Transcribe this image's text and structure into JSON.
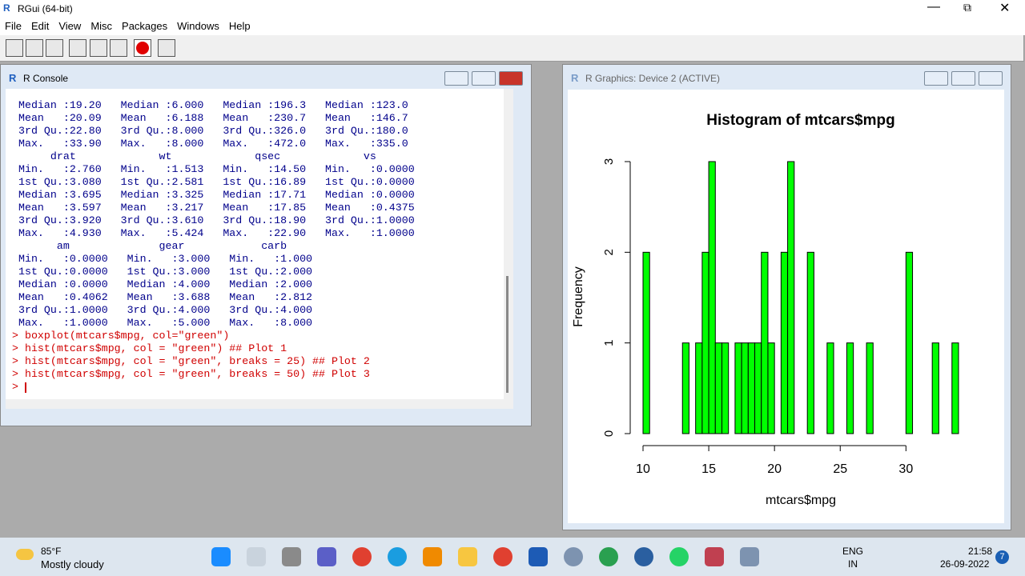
{
  "app": {
    "title": "RGui (64-bit)",
    "menu": [
      "File",
      "Edit",
      "View",
      "Misc",
      "Packages",
      "Windows",
      "Help"
    ]
  },
  "console": {
    "title": "R Console",
    "output": [
      " Median :19.20   Median :6.000   Median :196.3   Median :123.0  ",
      " Mean   :20.09   Mean   :6.188   Mean   :230.7   Mean   :146.7  ",
      " 3rd Qu.:22.80   3rd Qu.:8.000   3rd Qu.:326.0   3rd Qu.:180.0  ",
      " Max.   :33.90   Max.   :8.000   Max.   :472.0   Max.   :335.0  ",
      "      drat             wt             qsec             vs        ",
      " Min.   :2.760   Min.   :1.513   Min.   :14.50   Min.   :0.0000  ",
      " 1st Qu.:3.080   1st Qu.:2.581   1st Qu.:16.89   1st Qu.:0.0000  ",
      " Median :3.695   Median :3.325   Median :17.71   Median :0.0000  ",
      " Mean   :3.597   Mean   :3.217   Mean   :17.85   Mean   :0.4375  ",
      " 3rd Qu.:3.920   3rd Qu.:3.610   3rd Qu.:18.90   3rd Qu.:1.0000  ",
      " Max.   :4.930   Max.   :5.424   Max.   :22.90   Max.   :1.0000  ",
      "       am              gear            carb      ",
      " Min.   :0.0000   Min.   :3.000   Min.   :1.000  ",
      " 1st Qu.:0.0000   1st Qu.:3.000   1st Qu.:2.000  ",
      " Median :0.0000   Median :4.000   Median :2.000  ",
      " Mean   :0.4062   Mean   :3.688   Mean   :2.812  ",
      " 3rd Qu.:1.0000   3rd Qu.:4.000   3rd Qu.:4.000  ",
      " Max.   :1.0000   Max.   :5.000   Max.   :8.000  "
    ],
    "commands": [
      "> boxplot(mtcars$mpg, col=\"green\")",
      "> hist(mtcars$mpg, col = \"green\") ## Plot 1",
      "> hist(mtcars$mpg, col = \"green\", breaks = 25) ## Plot 2",
      "> hist(mtcars$mpg, col = \"green\", breaks = 50) ## Plot 3"
    ],
    "prompt": ">"
  },
  "graphics": {
    "title": "R Graphics: Device 2 (ACTIVE)",
    "histogram": {
      "type": "histogram",
      "title": "Histogram of mtcars$mpg",
      "xlabel": "mtcars$mpg",
      "ylabel": "Frequency",
      "color": "#00ff00",
      "bins": [
        10,
        10.5,
        11,
        11.5,
        12,
        12.5,
        13,
        13.5,
        14,
        14.5,
        15,
        15.5,
        16,
        16.5,
        17,
        17.5,
        18,
        18.5,
        19,
        19.5,
        20,
        20.5,
        21,
        21.5,
        22,
        22.5,
        23,
        23.5,
        24,
        24.5,
        25,
        25.5,
        26,
        26.5,
        27,
        27.5,
        28,
        28.5,
        29,
        29.5,
        30,
        30.5,
        31,
        31.5,
        32,
        32.5,
        33,
        33.5,
        34
      ],
      "counts": [
        2,
        0,
        0,
        0,
        0,
        0,
        1,
        0,
        1,
        2,
        3,
        1,
        1,
        0,
        1,
        1,
        1,
        1,
        2,
        1,
        0,
        2,
        3,
        0,
        0,
        2,
        0,
        0,
        1,
        0,
        0,
        1,
        0,
        0,
        1,
        0,
        0,
        0,
        0,
        0,
        2,
        0,
        0,
        0,
        1,
        0,
        0,
        1
      ],
      "xlim": [
        10,
        34
      ],
      "ylim": [
        0,
        3
      ],
      "xticks": [
        10,
        15,
        20,
        25,
        30
      ],
      "yticks": [
        0,
        1,
        2,
        3
      ]
    }
  },
  "taskbar": {
    "temperature": "85°F",
    "weather": "Mostly cloudy",
    "language": "ENG",
    "region": "IN",
    "time": "21:58",
    "date": "26-09-2022",
    "notifications": "7"
  }
}
